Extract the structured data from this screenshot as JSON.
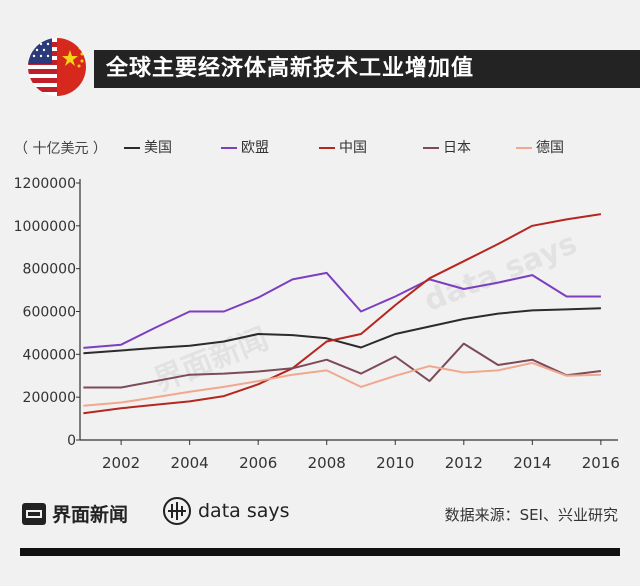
{
  "header": {
    "title": "全球主要经济体高新技术工业增加值"
  },
  "watermarks": {
    "left": "界面新闻",
    "right": "data says"
  },
  "footer": {
    "brand1": "界面新闻",
    "brand2": "data says",
    "source": "数据来源：SEI、兴业研究"
  },
  "colors": {
    "美国": "#2b2b2b",
    "欧盟": "#7b3fc0",
    "中国": "#b5261e",
    "日本": "#7d4a58",
    "德国": "#f0a88f"
  },
  "chart_data": {
    "type": "line",
    "title": "全球主要经济体高新技术工业增加值",
    "ylabel": "（ 十亿美元 ）",
    "xlabel": "",
    "legend_position": "top",
    "grid": false,
    "ylim": [
      0,
      1200000
    ],
    "xlim": [
      2000.8,
      2016.5
    ],
    "yticks": [
      0,
      200000,
      400000,
      600000,
      800000,
      1000000,
      1200000
    ],
    "ytick_labels": [
      "0",
      "200000",
      "400000",
      "600000",
      "800000",
      "1000000",
      "1200000"
    ],
    "xticks": [
      2002,
      2004,
      2006,
      2008,
      2010,
      2012,
      2014,
      2016
    ],
    "xtick_labels": [
      "2002",
      "2004",
      "2006",
      "2008",
      "2010",
      "2012",
      "2014",
      "2016"
    ],
    "x": [
      2000.9,
      2002,
      2003,
      2004,
      2005,
      2006,
      2007,
      2008,
      2009,
      2010,
      2011,
      2012,
      2013,
      2014,
      2015,
      2016
    ],
    "series": [
      {
        "name": "美国",
        "values": [
          405000,
          418000,
          430000,
          440000,
          460000,
          495000,
          490000,
          475000,
          432000,
          495000,
          530000,
          565000,
          590000,
          605000,
          610000,
          615000
        ]
      },
      {
        "name": "欧盟",
        "values": [
          430000,
          445000,
          525000,
          600000,
          600000,
          665000,
          750000,
          780000,
          600000,
          670000,
          750000,
          705000,
          735000,
          770000,
          670000,
          670000
        ]
      },
      {
        "name": "中国",
        "values": [
          125000,
          148000,
          165000,
          180000,
          205000,
          260000,
          335000,
          460000,
          495000,
          630000,
          755000,
          835000,
          915000,
          1000000,
          1030000,
          1055000
        ]
      },
      {
        "name": "日本",
        "values": [
          245000,
          245000,
          275000,
          305000,
          310000,
          320000,
          335000,
          375000,
          310000,
          390000,
          275000,
          450000,
          350000,
          375000,
          302000,
          322000
        ]
      },
      {
        "name": "德国",
        "values": [
          160000,
          175000,
          200000,
          225000,
          248000,
          275000,
          305000,
          325000,
          248000,
          300000,
          345000,
          315000,
          325000,
          360000,
          300000,
          305000
        ]
      }
    ]
  }
}
